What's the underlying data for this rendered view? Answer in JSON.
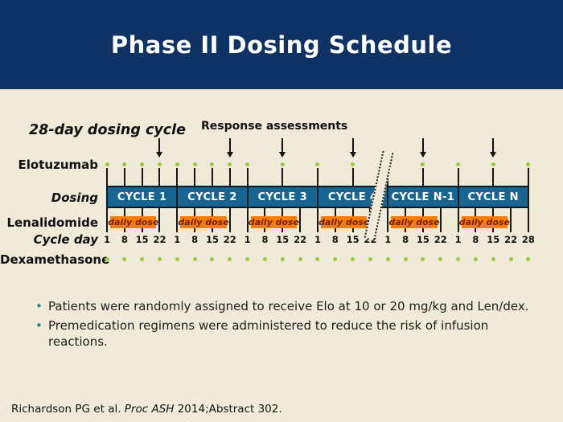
{
  "slide_title": "Phase II Dosing Schedule",
  "diagram": {
    "heading": "28-day dosing cycle",
    "response_heading": "Response assessments",
    "rows": {
      "elotuzumab": "Elotuzumab",
      "dosing": "Dosing",
      "lenalidomide": "Lenalidomide",
      "cycle_day": "Cycle day",
      "dexamethasone": "Dexamethasone"
    },
    "daily_dose_label": "daily dose",
    "cycles": [
      {
        "name": "CYCLE 1",
        "day_ticks": [
          1,
          8,
          15,
          22
        ],
        "elo_days": [
          1,
          8,
          15,
          22
        ],
        "dex_days": [
          1,
          8,
          15,
          22
        ],
        "daily_dose": true,
        "assessment_day": 22,
        "break_after": false
      },
      {
        "name": "CYCLE 2",
        "day_ticks": [
          1,
          8,
          15,
          22
        ],
        "elo_days": [
          1,
          8,
          15,
          22
        ],
        "dex_days": [
          1,
          8,
          15,
          22
        ],
        "daily_dose": true,
        "assessment_day": 22,
        "break_after": false
      },
      {
        "name": "CYCLE 3",
        "day_ticks": [
          1,
          8,
          15,
          22
        ],
        "elo_days": [
          1,
          15
        ],
        "dex_days": [
          1,
          8,
          15,
          22
        ],
        "daily_dose": true,
        "assessment_day": 15,
        "break_after": false
      },
      {
        "name": "CYCLE 4",
        "day_ticks": [
          1,
          8,
          15,
          22
        ],
        "elo_days": [
          1,
          15
        ],
        "dex_days": [
          1,
          8,
          15,
          22
        ],
        "daily_dose": true,
        "assessment_day": 15,
        "break_after": true
      },
      {
        "name": "CYCLE N-1",
        "day_ticks": [
          1,
          8,
          15,
          22
        ],
        "elo_days": [
          1,
          15
        ],
        "dex_days": [
          1,
          8,
          15,
          22
        ],
        "daily_dose": true,
        "assessment_day": 15,
        "break_after": false
      },
      {
        "name": "CYCLE N",
        "day_ticks": [
          1,
          8,
          15,
          22
        ],
        "elo_days": [
          1,
          15
        ],
        "dex_days": [
          1,
          8,
          15,
          22
        ],
        "daily_dose": true,
        "assessment_day": 15,
        "break_after": false
      }
    ],
    "final_day": 28
  },
  "bullets_marker": "•",
  "bullets": [
    "Patients were randomly assigned to receive Elo at 10 or 20 mg/kg and Len/dex.",
    "Premedication regimens were administered to reduce the risk of infusion reactions."
  ],
  "footer": {
    "prefix": "Richardson PG et al. ",
    "journal": "Proc ASH",
    "suffix": " 2014;Abstract 302."
  },
  "colors": {
    "header_navy": "#0e3263",
    "bar_blue": "#186592",
    "background": "#f0ebd9",
    "dose_orange": "#f57d05",
    "dose_text": "#7a1e00",
    "dot_green": "#9bcc3b",
    "bullet_teal": "#2e7f88",
    "text_dark": "#1c1c1c"
  }
}
